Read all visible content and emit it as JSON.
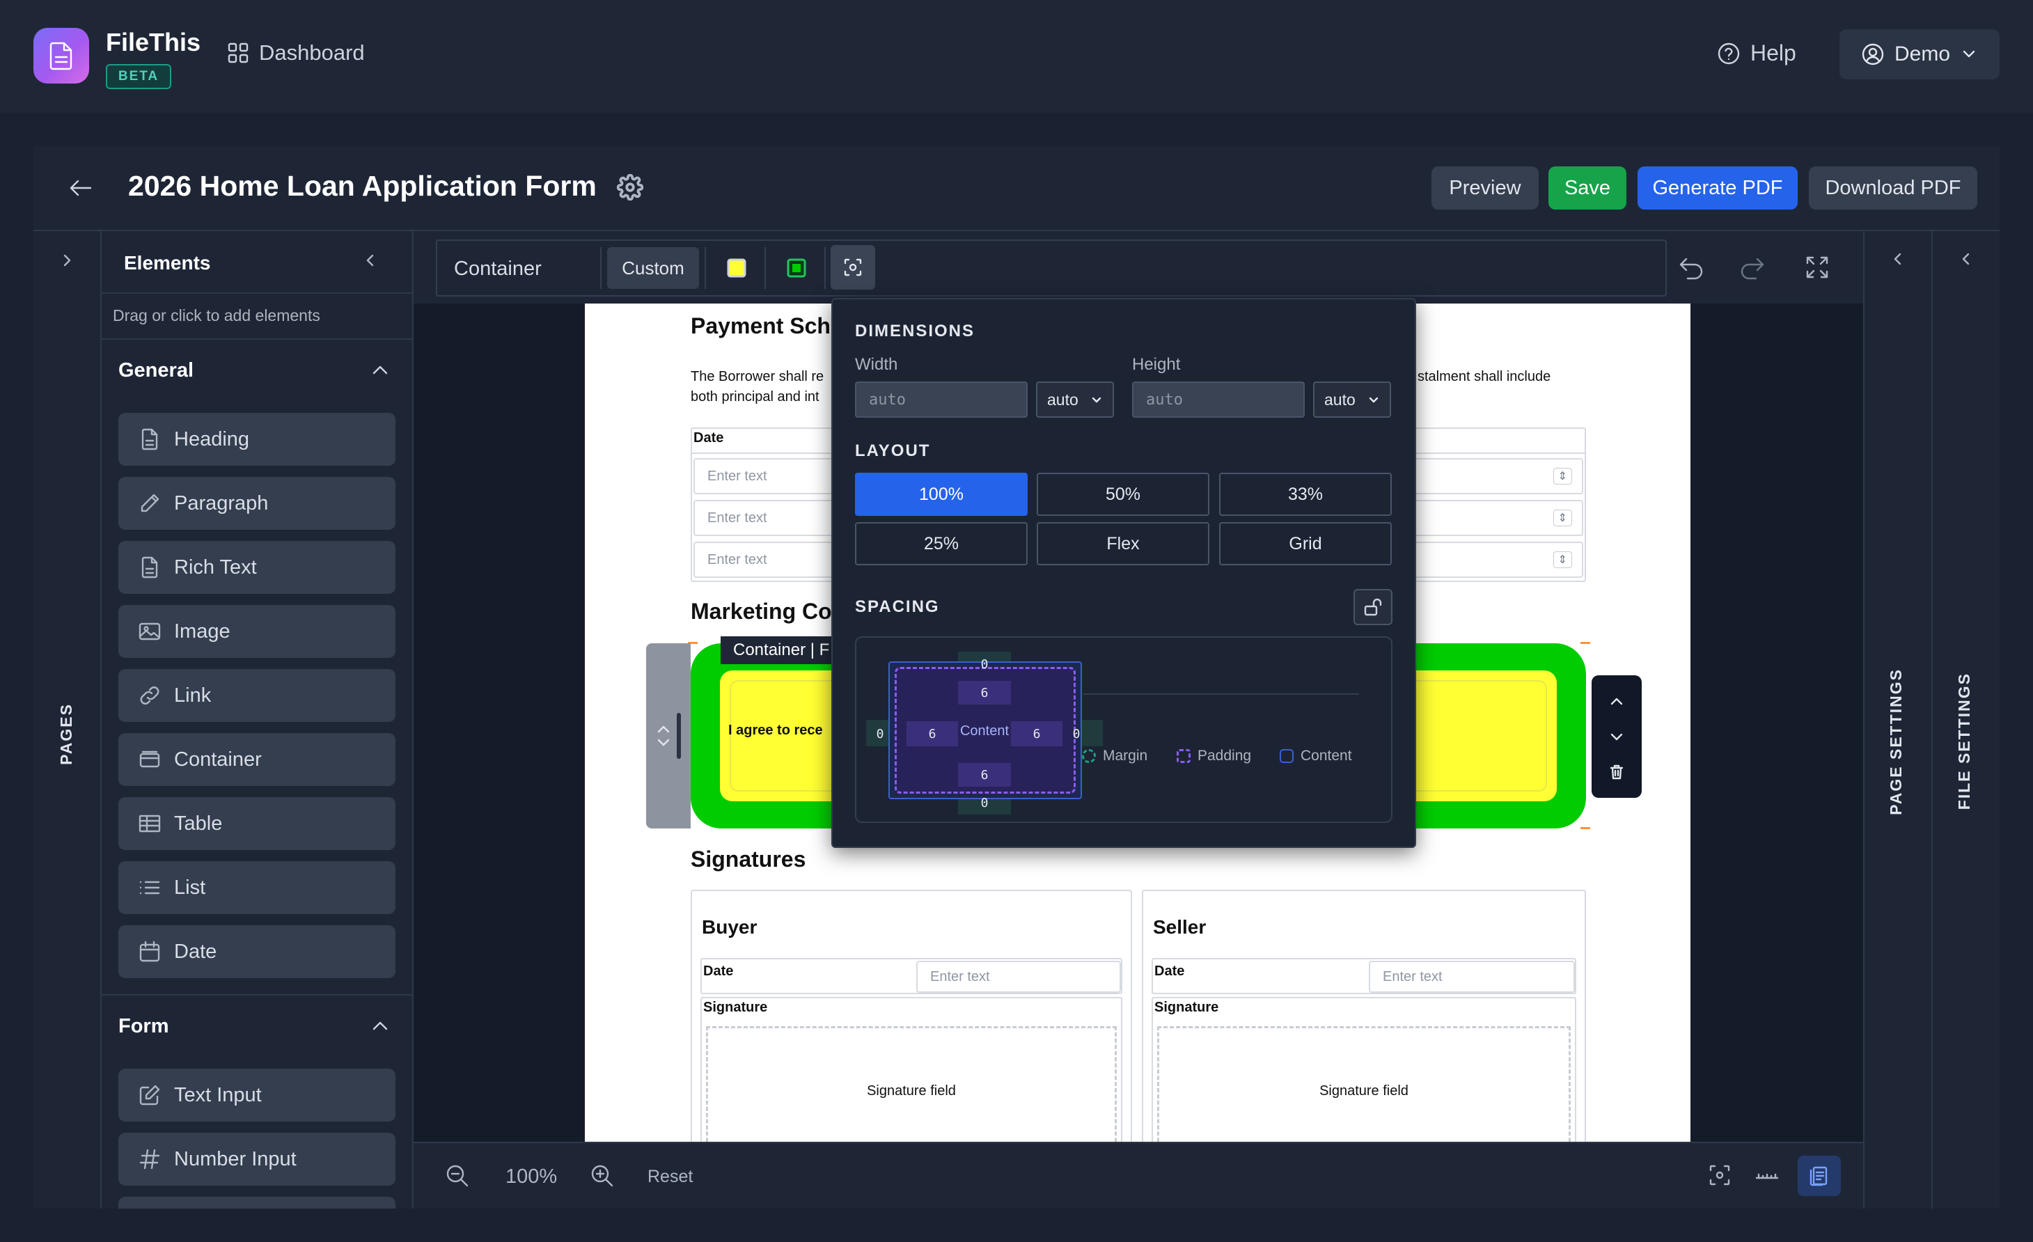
{
  "app": {
    "name": "FileThis",
    "badge": "BETA",
    "nav_dashboard": "Dashboard",
    "help": "Help",
    "user": "Demo"
  },
  "editor": {
    "title": "2026 Home Loan Application Form",
    "buttons": {
      "preview": "Preview",
      "save": "Save",
      "generate": "Generate PDF",
      "download": "Download PDF"
    }
  },
  "sidebar": {
    "pages_label": "PAGES",
    "elements_title": "Elements",
    "hint": "Drag or click to add elements",
    "general_title": "General",
    "general_items": [
      {
        "label": "Heading",
        "icon": "file-icon"
      },
      {
        "label": "Paragraph",
        "icon": "pen-icon"
      },
      {
        "label": "Rich Text",
        "icon": "file-icon"
      },
      {
        "label": "Image",
        "icon": "image-icon"
      },
      {
        "label": "Link",
        "icon": "link-icon"
      },
      {
        "label": "Container",
        "icon": "container-icon"
      },
      {
        "label": "Table",
        "icon": "table-icon"
      },
      {
        "label": "List",
        "icon": "list-icon"
      },
      {
        "label": "Date",
        "icon": "calendar-icon"
      }
    ],
    "form_title": "Form",
    "form_items": [
      {
        "label": "Text Input",
        "icon": "edit-icon"
      },
      {
        "label": "Number Input",
        "icon": "hash-icon"
      }
    ]
  },
  "toolbar": {
    "element": "Container",
    "custom": "Custom"
  },
  "popover": {
    "dimensions": "DIMENSIONS",
    "width_label": "Width",
    "height_label": "Height",
    "width_placeholder": "auto",
    "height_placeholder": "auto",
    "width_unit": "auto",
    "height_unit": "auto",
    "layout": "LAYOUT",
    "layout_options": [
      "100%",
      "50%",
      "33%",
      "25%",
      "Flex",
      "Grid"
    ],
    "layout_selected": "100%",
    "spacing": "SPACING",
    "margin": {
      "top": "0",
      "right": "0",
      "bottom": "0",
      "left": "0"
    },
    "padding": {
      "top": "6",
      "right": "6",
      "bottom": "6",
      "left": "6"
    },
    "content": "Content",
    "legend": [
      "Margin",
      "Padding",
      "Content"
    ]
  },
  "page": {
    "payment_heading": "Payment Sch",
    "payment_text_1": "The Borrower shall re",
    "payment_text_1_end": "stalment shall include",
    "payment_text_2": "both principal and int",
    "date_col": "Date",
    "input_placeholder": "Enter text",
    "marketing_heading": "Marketing Co",
    "container_tag": "Container | F",
    "agree_text": "I agree to rece",
    "signatures_heading": "Signatures",
    "buyer": "Buyer",
    "seller": "Seller",
    "date_label": "Date",
    "signature_label": "Signature",
    "signature_field": "Signature field"
  },
  "bottom": {
    "zoom": "100%",
    "reset": "Reset"
  },
  "right": {
    "page_settings": "PAGE SETTINGS",
    "file_settings": "FILE SETTINGS"
  },
  "colors": {
    "accent": "#2563eb",
    "save": "#16a34a",
    "container_green": "#00cc00",
    "container_yellow": "#ffff33",
    "padding_purple": "#8b5cf6",
    "margin_teal": "#1e9b86"
  }
}
